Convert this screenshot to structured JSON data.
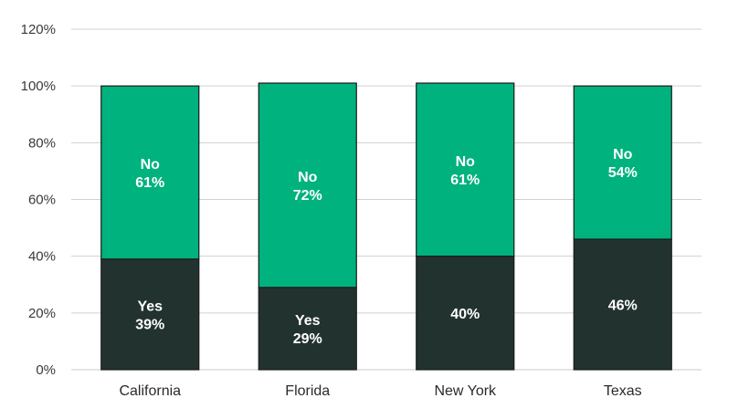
{
  "chart_data": {
    "type": "bar",
    "stacked": true,
    "categories": [
      "California",
      "Florida",
      "New York",
      "Texas"
    ],
    "series": [
      {
        "key": "yes",
        "values": [
          39,
          29,
          40,
          46
        ],
        "color": "#22332F",
        "labels": [
          [
            "Yes",
            "39%"
          ],
          [
            "Yes",
            "29%"
          ],
          [
            "40%"
          ],
          [
            "46%"
          ]
        ]
      },
      {
        "key": "no",
        "values": [
          61,
          72,
          61,
          54
        ],
        "color": "#00B27D",
        "labels": [
          [
            "No",
            "61%"
          ],
          [
            "No",
            "72%"
          ],
          [
            "No",
            "61%"
          ],
          [
            "No",
            "54%"
          ]
        ]
      }
    ],
    "ylim": [
      0,
      120
    ],
    "yticks": [
      0,
      20,
      40,
      60,
      80,
      100,
      120
    ],
    "ytick_labels": [
      "0%",
      "20%",
      "40%",
      "60%",
      "80%",
      "100%",
      "120%"
    ],
    "grid": true,
    "legend": "none",
    "title": "",
    "xlabel": "",
    "ylabel": ""
  }
}
